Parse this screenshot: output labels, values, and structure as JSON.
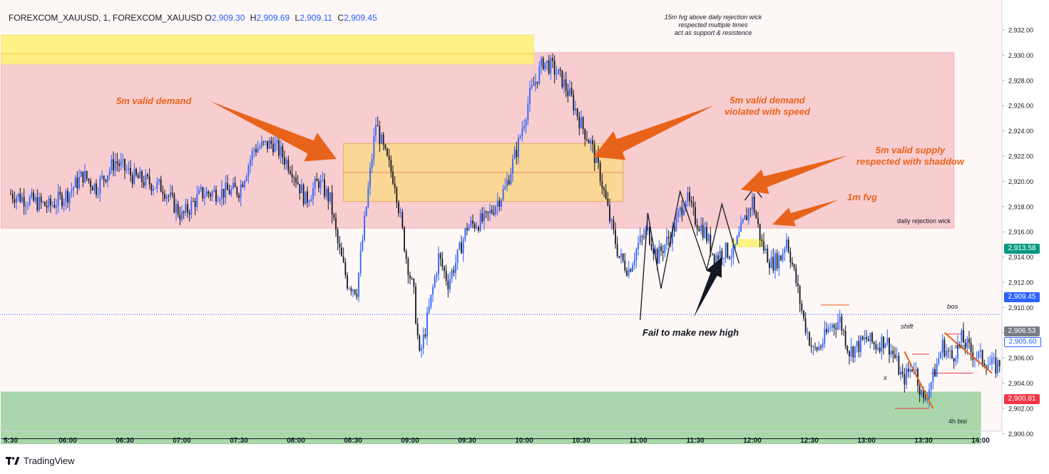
{
  "header": {
    "symbol": "FOREXCOM_XAUUSD, 1, FOREXCOM_XAUUSD",
    "o_label": "O",
    "o_value": "2,909.30",
    "h_label": "H",
    "h_value": "2,909.69",
    "l_label": "L",
    "l_value": "2,909.11",
    "c_label": "C",
    "c_value": "2,909.45"
  },
  "brand": {
    "name": "TradingView",
    "icon": "tradingview-logo-icon"
  },
  "colors": {
    "up": "#2962ff",
    "down": "#131722",
    "supply_zone": "#f8c9cc",
    "fvg_top": "#fff17a",
    "demand_zone": "#fcd98f",
    "bisi_zone": "#a5d6a7",
    "arrow": "#e8631a",
    "price_tag": "#089981",
    "last_tag": "#2962ff",
    "low_tag": "#f23645",
    "grey_tag": "#787b86"
  },
  "annotations": {
    "demand_5m": "5m valid demand",
    "demand_violated_1": "5m valid demand",
    "demand_violated_2": "violated with speed",
    "supply_5m_1": "5m valid supply",
    "supply_5m_2": "respected with shaddow",
    "fvg_1m": "1m fvg",
    "top_note_1": "15m fvg above daily rejection wick",
    "top_note_2": "respected multiple times",
    "top_note_3": "act as support & resistence",
    "daily_wick": "daily rejection wick",
    "fail_high": "Fail to make new high",
    "bisi_4h": "4h bisi",
    "shift": "shift",
    "bos": "bos",
    "idm": "idm",
    "x_mark": "x"
  },
  "price_tags": {
    "green": "2,913.58",
    "last": "2,909.45",
    "grey": "2,906.53",
    "blue_light": "2,905.60",
    "red": "2,900.81"
  },
  "chart_data": {
    "type": "candlestick",
    "title": "FOREXCOM_XAUUSD, 1",
    "xlabel": "",
    "ylabel": "",
    "ylim": [
      2899,
      2933
    ],
    "y_ticks": [
      2900,
      2902,
      2904,
      2906,
      2908,
      2910,
      2912,
      2914,
      2916,
      2918,
      2920,
      2922,
      2924,
      2926,
      2928,
      2930,
      2932
    ],
    "x_tick_labels": [
      "5:30",
      "06:00",
      "06:30",
      "07:00",
      "07:30",
      "08:00",
      "08:30",
      "09:00",
      "09:30",
      "10:00",
      "10:30",
      "11:00",
      "11:30",
      "12:00",
      "12:30",
      "13:00",
      "13:30",
      "14:00"
    ],
    "x_range": [
      "05:30",
      "14:10"
    ],
    "grid": false,
    "last_price": 2909.45,
    "zones": [
      {
        "name": "supply",
        "from": "05:25",
        "to": "13:46",
        "low": 2916.3,
        "high": 2930.2
      },
      {
        "name": "fvg_15m",
        "from": "05:25",
        "to": "10:05",
        "low": 2929.3,
        "high": 2931.6
      },
      {
        "name": "demand_5m",
        "from": "08:25",
        "to": "10:52",
        "low": 2918.4,
        "high": 2923.0
      },
      {
        "name": "bisi_4h",
        "from": "05:25",
        "to": "14:00",
        "low": 2899.2,
        "high": 2903.3
      },
      {
        "name": "fvg_1m",
        "from": "11:49",
        "to": "12:06",
        "low": 2914.8,
        "high": 2915.4
      }
    ],
    "path": [
      [
        "05:30",
        2919.0
      ],
      [
        "05:50",
        2918.0
      ],
      [
        "06:00",
        2919.0
      ],
      [
        "06:08",
        2920.5
      ],
      [
        "06:15",
        2919.5
      ],
      [
        "06:25",
        2921.6
      ],
      [
        "06:35",
        2920.3
      ],
      [
        "06:50",
        2919.5
      ],
      [
        "07:00",
        2917.2
      ],
      [
        "07:10",
        2919.0
      ],
      [
        "07:30",
        2919.3
      ],
      [
        "07:38",
        2922.6
      ],
      [
        "07:48",
        2923.0
      ],
      [
        "07:58",
        2921.0
      ],
      [
        "08:05",
        2918.5
      ],
      [
        "08:12",
        2920.0
      ],
      [
        "08:18",
        2918.5
      ],
      [
        "08:22",
        2915.0
      ],
      [
        "08:27",
        2912.0
      ],
      [
        "08:32",
        2911.4
      ],
      [
        "08:37",
        2918.0
      ],
      [
        "08:42",
        2924.6
      ],
      [
        "08:47",
        2922.0
      ],
      [
        "08:52",
        2920.0
      ],
      [
        "08:58",
        2914.0
      ],
      [
        "09:02",
        2911.0
      ],
      [
        "09:05",
        2906.0
      ],
      [
        "09:09",
        2909.0
      ],
      [
        "09:15",
        2914.0
      ],
      [
        "09:20",
        2912.0
      ],
      [
        "09:25",
        2914.0
      ],
      [
        "09:30",
        2916.4
      ],
      [
        "09:40",
        2917.0
      ],
      [
        "09:50",
        2919.4
      ],
      [
        "09:57",
        2923.0
      ],
      [
        "10:03",
        2926.8
      ],
      [
        "10:10",
        2929.5
      ],
      [
        "10:15",
        2929.0
      ],
      [
        "10:20",
        2928.0
      ],
      [
        "10:25",
        2926.5
      ],
      [
        "10:30",
        2924.5
      ],
      [
        "10:35",
        2923.0
      ],
      [
        "10:40",
        2920.5
      ],
      [
        "10:45",
        2917.0
      ],
      [
        "10:50",
        2914.0
      ],
      [
        "10:55",
        2913.0
      ],
      [
        "11:00",
        2915.0
      ],
      [
        "11:05",
        2916.0
      ],
      [
        "11:10",
        2914.0
      ],
      [
        "11:18",
        2916.0
      ],
      [
        "11:25",
        2918.8
      ],
      [
        "11:30",
        2917.0
      ],
      [
        "11:35",
        2916.0
      ],
      [
        "11:40",
        2914.0
      ],
      [
        "11:45",
        2914.5
      ],
      [
        "11:50",
        2914.3
      ],
      [
        "11:55",
        2916.5
      ],
      [
        "12:00",
        2918.5
      ],
      [
        "12:05",
        2915.0
      ],
      [
        "12:10",
        2913.5
      ],
      [
        "12:15",
        2914.0
      ],
      [
        "12:18",
        2915.5
      ],
      [
        "12:23",
        2912.0
      ],
      [
        "12:27",
        2909.0
      ],
      [
        "12:32",
        2906.5
      ],
      [
        "12:36",
        2907.0
      ],
      [
        "12:41",
        2908.5
      ],
      [
        "12:46",
        2909.0
      ],
      [
        "12:51",
        2906.5
      ],
      [
        "12:56",
        2907.0
      ],
      [
        "13:00",
        2907.5
      ],
      [
        "13:05",
        2907.0
      ],
      [
        "13:10",
        2907.5
      ],
      [
        "13:15",
        2906.0
      ],
      [
        "13:19",
        2904.2
      ],
      [
        "13:25",
        2905.5
      ],
      [
        "13:30",
        2902.5
      ],
      [
        "13:35",
        2904.5
      ],
      [
        "13:40",
        2907.0
      ],
      [
        "13:45",
        2906.0
      ],
      [
        "13:50",
        2907.5
      ],
      [
        "13:55",
        2906.5
      ],
      [
        "14:00",
        2906.0
      ],
      [
        "14:05",
        2905.5
      ],
      [
        "14:08",
        2905.3
      ],
      [
        "14:10",
        2905.6
      ]
    ],
    "swing_lines": [
      [
        [
          "11:01",
          2909.0
        ],
        [
          "11:05",
          2917.5
        ],
        [
          "11:12",
          2911.5
        ],
        [
          "11:22",
          2919.2
        ],
        [
          "11:36",
          2913.0
        ],
        [
          "11:44",
          2918.2
        ],
        [
          "11:53",
          2913.5
        ]
      ],
      [
        [
          "11:56",
          2918.5
        ],
        [
          "12:01",
          2919.5
        ],
        [
          "12:05",
          2918.7
        ]
      ]
    ],
    "level_lines": [
      {
        "name": "fail-high-top",
        "from": "12:36",
        "to": "12:51",
        "price": 2910.2,
        "color": "#e8631a"
      },
      {
        "name": "shift",
        "from": "13:24",
        "to": "13:33",
        "price": 2906.3,
        "color": "#f23645"
      },
      {
        "name": "bos",
        "from": "13:42",
        "to": "13:50",
        "price": 2907.9,
        "color": "#f23645"
      },
      {
        "name": "idm",
        "from": "13:34",
        "to": "13:56",
        "price": 2904.8,
        "color": "#f23645"
      },
      {
        "name": "x",
        "from": "13:15",
        "to": "13:33",
        "price": 2902.0,
        "color": "#f23645"
      },
      {
        "name": "bisi-mid",
        "from": "05:25",
        "to": "13:59",
        "price": 2899.6,
        "color": "#131722"
      }
    ],
    "trend_lines": [
      [
        [
          "13:20",
          2906.5
        ],
        [
          "13:35",
          2902.0
        ]
      ],
      [
        [
          "13:41",
          2908.0
        ],
        [
          "14:06",
          2904.8
        ]
      ]
    ]
  }
}
